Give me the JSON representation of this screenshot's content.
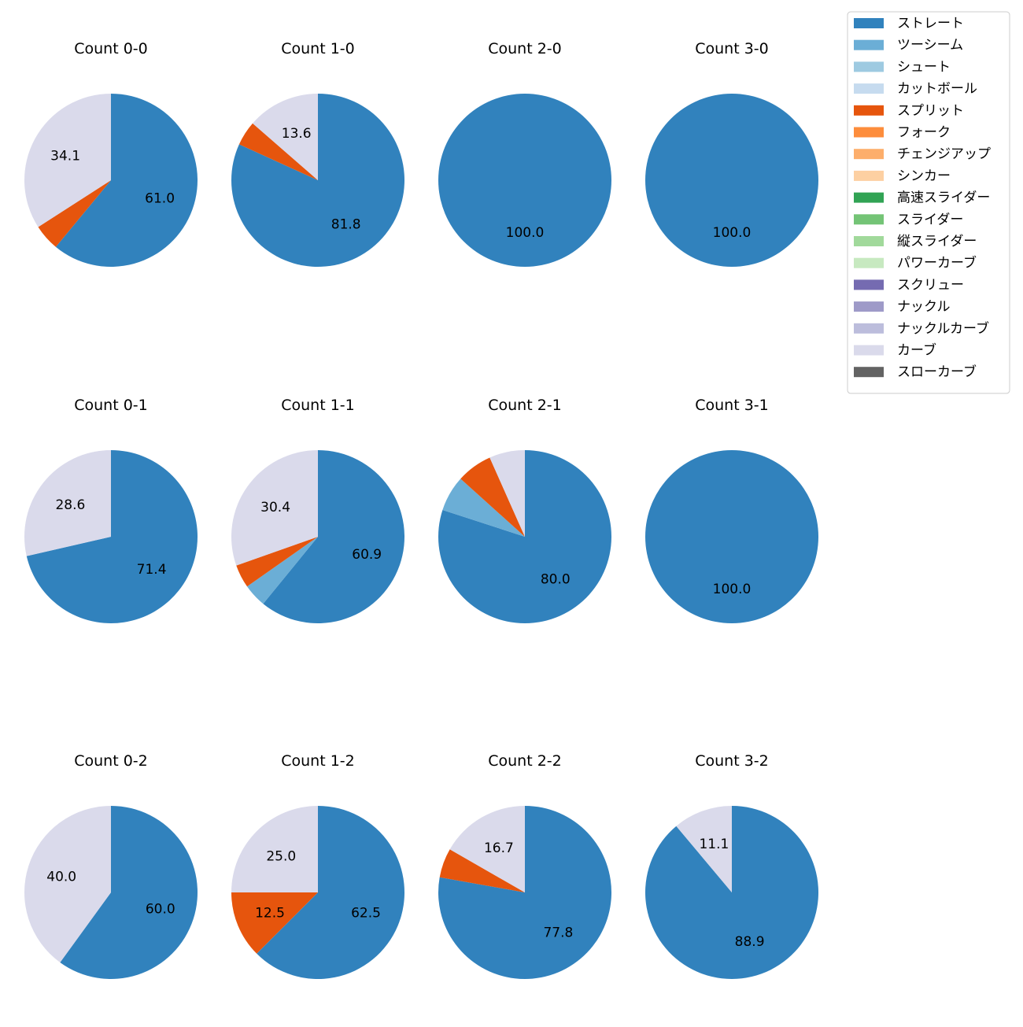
{
  "chart_data": {
    "type": "pie",
    "legend": {
      "placement": "top-right",
      "entries": [
        {
          "name": "ストレート",
          "color": "#3182bd"
        },
        {
          "name": "ツーシーム",
          "color": "#6baed6"
        },
        {
          "name": "シュート",
          "color": "#9ecae1"
        },
        {
          "name": "カットボール",
          "color": "#c6dbef"
        },
        {
          "name": "スプリット",
          "color": "#e6550d"
        },
        {
          "name": "フォーク",
          "color": "#fd8d3c"
        },
        {
          "name": "チェンジアップ",
          "color": "#fdae6b"
        },
        {
          "name": "シンカー",
          "color": "#fdd0a2"
        },
        {
          "name": "高速スライダー",
          "color": "#31a354"
        },
        {
          "name": "スライダー",
          "color": "#74c476"
        },
        {
          "name": "縦スライダー",
          "color": "#a1d99b"
        },
        {
          "name": "パワーカーブ",
          "color": "#c7e9c0"
        },
        {
          "name": "スクリュー",
          "color": "#756bb1"
        },
        {
          "name": "ナックル",
          "color": "#9e9ac8"
        },
        {
          "name": "ナックルカーブ",
          "color": "#bcbddc"
        },
        {
          "name": "カーブ",
          "color": "#dadaeb"
        },
        {
          "name": "スローカーブ",
          "color": "#636363"
        }
      ]
    },
    "pies": [
      {
        "title": "Count 0-0",
        "slices": [
          {
            "pitch": "ストレート",
            "value": 61.0,
            "label": "61.0"
          },
          {
            "pitch": "スプリット",
            "value": 4.9,
            "label": ""
          },
          {
            "pitch": "カーブ",
            "value": 34.1,
            "label": "34.1"
          }
        ]
      },
      {
        "title": "Count 1-0",
        "slices": [
          {
            "pitch": "ストレート",
            "value": 81.8,
            "label": "81.8"
          },
          {
            "pitch": "スプリット",
            "value": 4.6,
            "label": ""
          },
          {
            "pitch": "カーブ",
            "value": 13.6,
            "label": "13.6"
          }
        ]
      },
      {
        "title": "Count 2-0",
        "slices": [
          {
            "pitch": "ストレート",
            "value": 100.0,
            "label": "100.0"
          }
        ]
      },
      {
        "title": "Count 3-0",
        "slices": [
          {
            "pitch": "ストレート",
            "value": 100.0,
            "label": "100.0"
          }
        ]
      },
      {
        "title": "Count 0-1",
        "slices": [
          {
            "pitch": "ストレート",
            "value": 71.4,
            "label": "71.4"
          },
          {
            "pitch": "カーブ",
            "value": 28.6,
            "label": "28.6"
          }
        ]
      },
      {
        "title": "Count 1-1",
        "slices": [
          {
            "pitch": "ストレート",
            "value": 60.9,
            "label": "60.9"
          },
          {
            "pitch": "ツーシーム",
            "value": 4.35,
            "label": ""
          },
          {
            "pitch": "スプリット",
            "value": 4.35,
            "label": ""
          },
          {
            "pitch": "カーブ",
            "value": 30.4,
            "label": "30.4"
          }
        ]
      },
      {
        "title": "Count 2-1",
        "slices": [
          {
            "pitch": "ストレート",
            "value": 80.0,
            "label": "80.0"
          },
          {
            "pitch": "ツーシーム",
            "value": 6.67,
            "label": ""
          },
          {
            "pitch": "スプリット",
            "value": 6.67,
            "label": ""
          },
          {
            "pitch": "カーブ",
            "value": 6.66,
            "label": ""
          }
        ]
      },
      {
        "title": "Count 3-1",
        "slices": [
          {
            "pitch": "ストレート",
            "value": 100.0,
            "label": "100.0"
          }
        ]
      },
      {
        "title": "Count 0-2",
        "slices": [
          {
            "pitch": "ストレート",
            "value": 60.0,
            "label": "60.0"
          },
          {
            "pitch": "カーブ",
            "value": 40.0,
            "label": "40.0"
          }
        ]
      },
      {
        "title": "Count 1-2",
        "slices": [
          {
            "pitch": "ストレート",
            "value": 62.5,
            "label": "62.5"
          },
          {
            "pitch": "スプリット",
            "value": 12.5,
            "label": "12.5"
          },
          {
            "pitch": "カーブ",
            "value": 25.0,
            "label": "25.0"
          }
        ]
      },
      {
        "title": "Count 2-2",
        "slices": [
          {
            "pitch": "ストレート",
            "value": 77.8,
            "label": "77.8"
          },
          {
            "pitch": "スプリット",
            "value": 5.5,
            "label": ""
          },
          {
            "pitch": "カーブ",
            "value": 16.7,
            "label": "16.7"
          }
        ]
      },
      {
        "title": "Count 3-2",
        "slices": [
          {
            "pitch": "ストレート",
            "value": 88.9,
            "label": "88.9"
          },
          {
            "pitch": "カーブ",
            "value": 11.1,
            "label": "11.1"
          }
        ]
      }
    ]
  }
}
